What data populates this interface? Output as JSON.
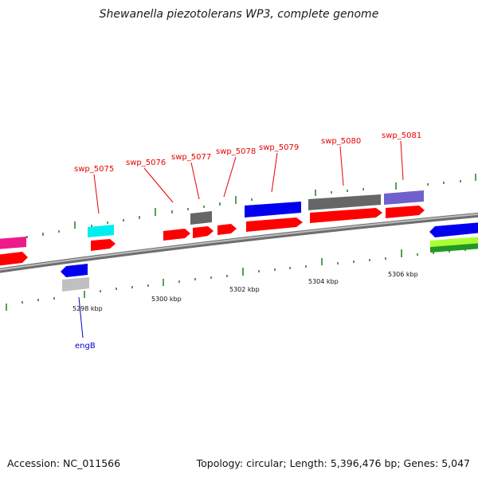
{
  "header": {
    "title": "Shewanella piezotolerans WP3, complete genome"
  },
  "footer": {
    "accession": "Accession: NC_011566",
    "topology": "Topology: circular; Length: 5,396,476 bp; Genes: 5,047"
  },
  "scale": {
    "unit": "kbp",
    "labels": [
      "5298 kbp",
      "5300 kbp",
      "5302 kbp",
      "5304 kbp",
      "5306 kbp"
    ]
  },
  "gene_labels": [
    {
      "text": "swp_5075",
      "color": "#e60000"
    },
    {
      "text": "swp_5076",
      "color": "#e60000"
    },
    {
      "text": "swp_5077",
      "color": "#e60000"
    },
    {
      "text": "swp_5078",
      "color": "#e60000"
    },
    {
      "text": "swp_5079",
      "color": "#e60000"
    },
    {
      "text": "swp_5080",
      "color": "#e60000"
    },
    {
      "text": "swp_5081",
      "color": "#e60000"
    },
    {
      "text": "engB",
      "color": "#0000cc"
    }
  ],
  "colors": {
    "backbone": "#8c8c8c",
    "cds": "#ff0000",
    "tick": "#1a7f1a",
    "gene_blue": "#0000ee",
    "gene_gray": "#666666",
    "gene_light_gray": "#c0c0c0",
    "gene_cyan": "#00eeee",
    "gene_magenta": "#ee1a8c",
    "gene_purple": "#7060cc",
    "gene_lime": "#aaff33",
    "gene_green": "#229922"
  }
}
